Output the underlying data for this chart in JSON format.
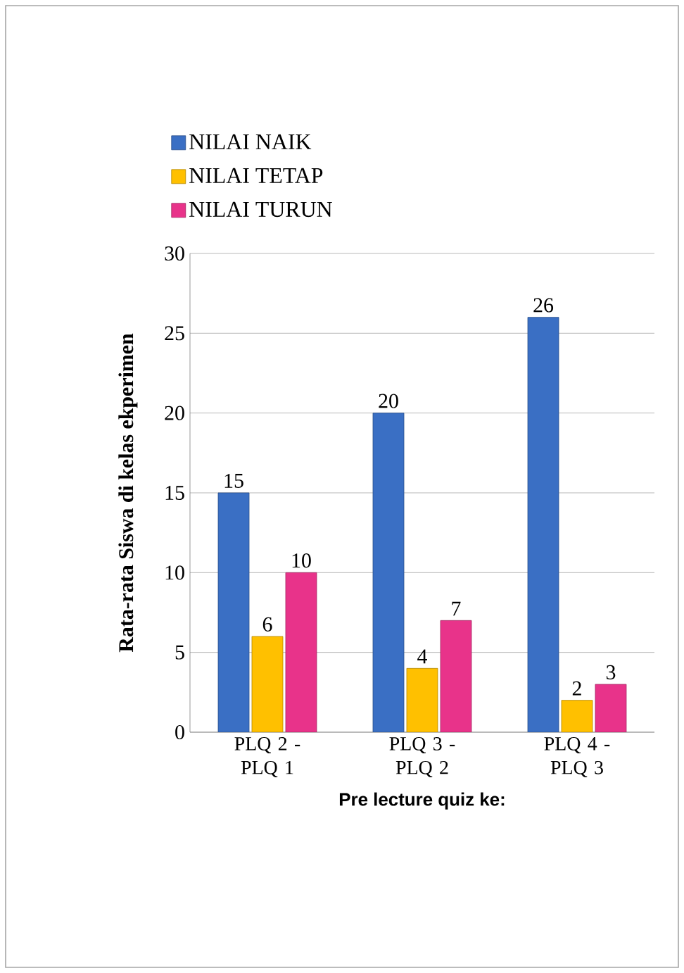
{
  "chart_data": {
    "type": "bar",
    "xlabel": "Pre lecture quiz ke:",
    "ylabel": "Rata-rata Siswa di kelas ekperimen",
    "categories": [
      "PLQ 2 - PLQ 1",
      "PLQ 3 - PLQ 2",
      "PLQ 4 - PLQ 3"
    ],
    "series": [
      {
        "name": "NILAI NAIK",
        "color": "#3a6fc4",
        "values": [
          15,
          20,
          26
        ]
      },
      {
        "name": "NILAI TETAP",
        "color": "#ffc000",
        "values": [
          6,
          4,
          2
        ]
      },
      {
        "name": "NILAI TURUN",
        "color": "#e8338a",
        "values": [
          10,
          7,
          3
        ]
      }
    ],
    "ylim": [
      0,
      30
    ],
    "yticks": [
      0,
      5,
      10,
      15,
      20,
      25,
      30
    ],
    "grid": "y",
    "legend": "top",
    "data_labels": true
  }
}
